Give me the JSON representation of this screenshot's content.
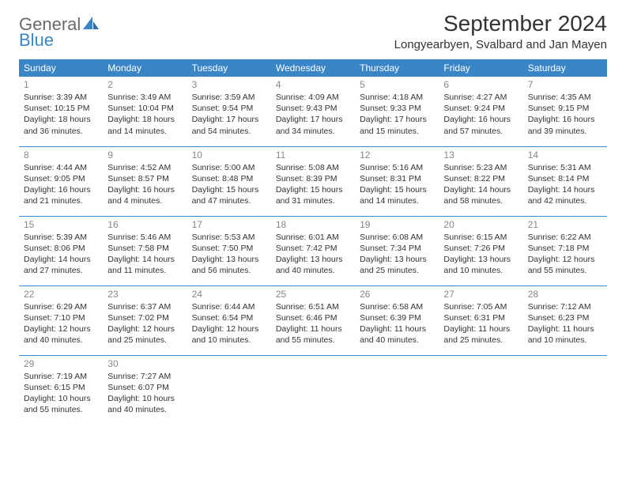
{
  "brand": {
    "word1": "General",
    "word2": "Blue",
    "word1_color": "#6a6a6a",
    "word2_color": "#3a85c6",
    "icon_color": "#3a85c6"
  },
  "title": "September 2024",
  "location": "Longyearbyen, Svalbard and Jan Mayen",
  "colors": {
    "header_bg": "#3a85c6",
    "header_text": "#ffffff",
    "row_divider": "#3a85c6",
    "daynum_color": "#888888",
    "body_text": "#333333",
    "page_bg": "#ffffff"
  },
  "day_headers": [
    "Sunday",
    "Monday",
    "Tuesday",
    "Wednesday",
    "Thursday",
    "Friday",
    "Saturday"
  ],
  "weeks": [
    [
      {
        "day": "1",
        "sunrise": "Sunrise: 3:39 AM",
        "sunset": "Sunset: 10:15 PM",
        "daylight1": "Daylight: 18 hours",
        "daylight2": "and 36 minutes."
      },
      {
        "day": "2",
        "sunrise": "Sunrise: 3:49 AM",
        "sunset": "Sunset: 10:04 PM",
        "daylight1": "Daylight: 18 hours",
        "daylight2": "and 14 minutes."
      },
      {
        "day": "3",
        "sunrise": "Sunrise: 3:59 AM",
        "sunset": "Sunset: 9:54 PM",
        "daylight1": "Daylight: 17 hours",
        "daylight2": "and 54 minutes."
      },
      {
        "day": "4",
        "sunrise": "Sunrise: 4:09 AM",
        "sunset": "Sunset: 9:43 PM",
        "daylight1": "Daylight: 17 hours",
        "daylight2": "and 34 minutes."
      },
      {
        "day": "5",
        "sunrise": "Sunrise: 4:18 AM",
        "sunset": "Sunset: 9:33 PM",
        "daylight1": "Daylight: 17 hours",
        "daylight2": "and 15 minutes."
      },
      {
        "day": "6",
        "sunrise": "Sunrise: 4:27 AM",
        "sunset": "Sunset: 9:24 PM",
        "daylight1": "Daylight: 16 hours",
        "daylight2": "and 57 minutes."
      },
      {
        "day": "7",
        "sunrise": "Sunrise: 4:35 AM",
        "sunset": "Sunset: 9:15 PM",
        "daylight1": "Daylight: 16 hours",
        "daylight2": "and 39 minutes."
      }
    ],
    [
      {
        "day": "8",
        "sunrise": "Sunrise: 4:44 AM",
        "sunset": "Sunset: 9:05 PM",
        "daylight1": "Daylight: 16 hours",
        "daylight2": "and 21 minutes."
      },
      {
        "day": "9",
        "sunrise": "Sunrise: 4:52 AM",
        "sunset": "Sunset: 8:57 PM",
        "daylight1": "Daylight: 16 hours",
        "daylight2": "and 4 minutes."
      },
      {
        "day": "10",
        "sunrise": "Sunrise: 5:00 AM",
        "sunset": "Sunset: 8:48 PM",
        "daylight1": "Daylight: 15 hours",
        "daylight2": "and 47 minutes."
      },
      {
        "day": "11",
        "sunrise": "Sunrise: 5:08 AM",
        "sunset": "Sunset: 8:39 PM",
        "daylight1": "Daylight: 15 hours",
        "daylight2": "and 31 minutes."
      },
      {
        "day": "12",
        "sunrise": "Sunrise: 5:16 AM",
        "sunset": "Sunset: 8:31 PM",
        "daylight1": "Daylight: 15 hours",
        "daylight2": "and 14 minutes."
      },
      {
        "day": "13",
        "sunrise": "Sunrise: 5:23 AM",
        "sunset": "Sunset: 8:22 PM",
        "daylight1": "Daylight: 14 hours",
        "daylight2": "and 58 minutes."
      },
      {
        "day": "14",
        "sunrise": "Sunrise: 5:31 AM",
        "sunset": "Sunset: 8:14 PM",
        "daylight1": "Daylight: 14 hours",
        "daylight2": "and 42 minutes."
      }
    ],
    [
      {
        "day": "15",
        "sunrise": "Sunrise: 5:39 AM",
        "sunset": "Sunset: 8:06 PM",
        "daylight1": "Daylight: 14 hours",
        "daylight2": "and 27 minutes."
      },
      {
        "day": "16",
        "sunrise": "Sunrise: 5:46 AM",
        "sunset": "Sunset: 7:58 PM",
        "daylight1": "Daylight: 14 hours",
        "daylight2": "and 11 minutes."
      },
      {
        "day": "17",
        "sunrise": "Sunrise: 5:53 AM",
        "sunset": "Sunset: 7:50 PM",
        "daylight1": "Daylight: 13 hours",
        "daylight2": "and 56 minutes."
      },
      {
        "day": "18",
        "sunrise": "Sunrise: 6:01 AM",
        "sunset": "Sunset: 7:42 PM",
        "daylight1": "Daylight: 13 hours",
        "daylight2": "and 40 minutes."
      },
      {
        "day": "19",
        "sunrise": "Sunrise: 6:08 AM",
        "sunset": "Sunset: 7:34 PM",
        "daylight1": "Daylight: 13 hours",
        "daylight2": "and 25 minutes."
      },
      {
        "day": "20",
        "sunrise": "Sunrise: 6:15 AM",
        "sunset": "Sunset: 7:26 PM",
        "daylight1": "Daylight: 13 hours",
        "daylight2": "and 10 minutes."
      },
      {
        "day": "21",
        "sunrise": "Sunrise: 6:22 AM",
        "sunset": "Sunset: 7:18 PM",
        "daylight1": "Daylight: 12 hours",
        "daylight2": "and 55 minutes."
      }
    ],
    [
      {
        "day": "22",
        "sunrise": "Sunrise: 6:29 AM",
        "sunset": "Sunset: 7:10 PM",
        "daylight1": "Daylight: 12 hours",
        "daylight2": "and 40 minutes."
      },
      {
        "day": "23",
        "sunrise": "Sunrise: 6:37 AM",
        "sunset": "Sunset: 7:02 PM",
        "daylight1": "Daylight: 12 hours",
        "daylight2": "and 25 minutes."
      },
      {
        "day": "24",
        "sunrise": "Sunrise: 6:44 AM",
        "sunset": "Sunset: 6:54 PM",
        "daylight1": "Daylight: 12 hours",
        "daylight2": "and 10 minutes."
      },
      {
        "day": "25",
        "sunrise": "Sunrise: 6:51 AM",
        "sunset": "Sunset: 6:46 PM",
        "daylight1": "Daylight: 11 hours",
        "daylight2": "and 55 minutes."
      },
      {
        "day": "26",
        "sunrise": "Sunrise: 6:58 AM",
        "sunset": "Sunset: 6:39 PM",
        "daylight1": "Daylight: 11 hours",
        "daylight2": "and 40 minutes."
      },
      {
        "day": "27",
        "sunrise": "Sunrise: 7:05 AM",
        "sunset": "Sunset: 6:31 PM",
        "daylight1": "Daylight: 11 hours",
        "daylight2": "and 25 minutes."
      },
      {
        "day": "28",
        "sunrise": "Sunrise: 7:12 AM",
        "sunset": "Sunset: 6:23 PM",
        "daylight1": "Daylight: 11 hours",
        "daylight2": "and 10 minutes."
      }
    ],
    [
      {
        "day": "29",
        "sunrise": "Sunrise: 7:19 AM",
        "sunset": "Sunset: 6:15 PM",
        "daylight1": "Daylight: 10 hours",
        "daylight2": "and 55 minutes."
      },
      {
        "day": "30",
        "sunrise": "Sunrise: 7:27 AM",
        "sunset": "Sunset: 6:07 PM",
        "daylight1": "Daylight: 10 hours",
        "daylight2": "and 40 minutes."
      },
      null,
      null,
      null,
      null,
      null
    ]
  ]
}
